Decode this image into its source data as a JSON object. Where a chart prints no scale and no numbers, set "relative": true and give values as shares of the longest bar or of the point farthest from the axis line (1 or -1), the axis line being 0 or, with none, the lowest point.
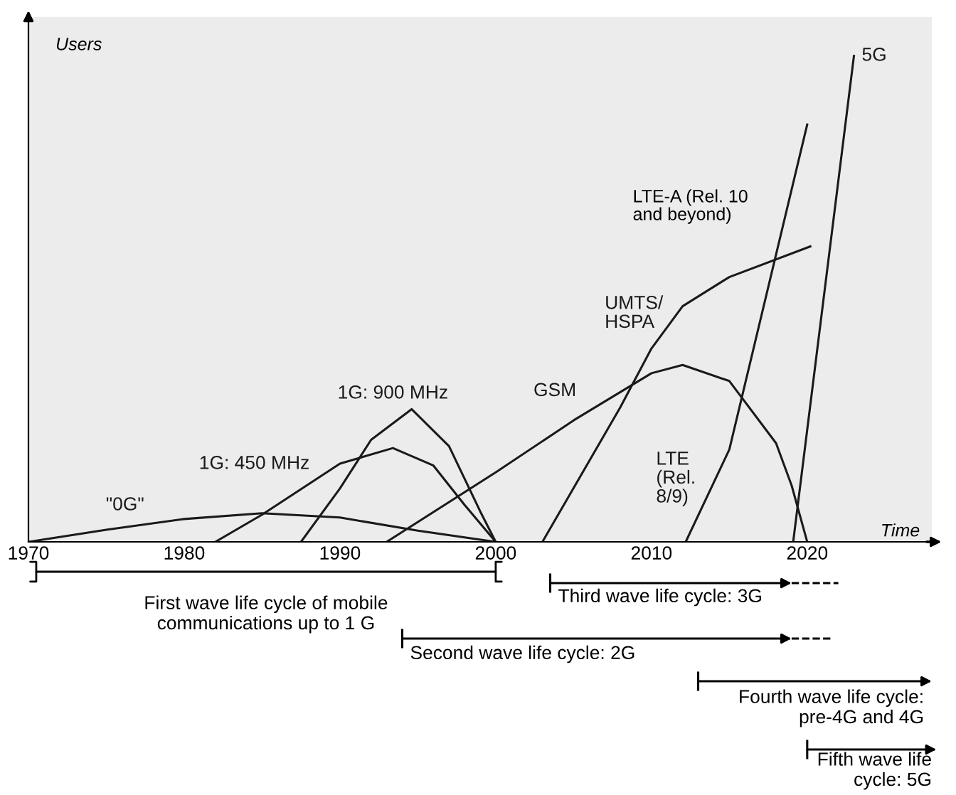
{
  "chart_data": {
    "type": "line",
    "relative": true,
    "xlabel": "Time",
    "ylabel": "Users",
    "xlim": [
      1970,
      2028
    ],
    "xticks": [
      1970,
      1980,
      1990,
      2000,
      2010,
      2020
    ],
    "grid": false,
    "marker": "none",
    "line_style": "solid",
    "series": [
      {
        "name": "\"0G\"",
        "color": "#1a1a1a",
        "x": [
          1970,
          1975,
          1980,
          1985,
          1990,
          1995,
          2000
        ],
        "values": [
          0,
          0.025,
          0.047,
          0.059,
          0.05,
          0.023,
          0
        ]
      },
      {
        "name": "1G: 450 MHz",
        "color": "#1a1a1a",
        "x": [
          1982,
          1985,
          1990,
          1993.4,
          1996,
          1998,
          2000
        ],
        "values": [
          0,
          0.056,
          0.161,
          0.193,
          0.157,
          0.076,
          0
        ]
      },
      {
        "name": "1G: 900 MHz",
        "color": "#1a1a1a",
        "x": [
          1987.5,
          1990,
          1992,
          1994.6,
          1997,
          1999,
          2000
        ],
        "values": [
          0,
          0.11,
          0.21,
          0.273,
          0.197,
          0.063,
          0
        ]
      },
      {
        "name": "GSM",
        "color": "#1a1a1a",
        "x": [
          1993,
          2000,
          2005,
          2010,
          2012,
          2015,
          2018,
          2019,
          2020
        ],
        "values": [
          0,
          0.143,
          0.25,
          0.347,
          0.364,
          0.331,
          0.203,
          0.116,
          0
        ]
      },
      {
        "name": "UMTS/\nHSPA",
        "color": "#1a1a1a",
        "x": [
          2003,
          2008,
          2010,
          2012,
          2015,
          2020.2
        ],
        "values": [
          0,
          0.277,
          0.398,
          0.485,
          0.545,
          0.608
        ]
      },
      {
        "name": "LTE\n(Rel.\n8/9)",
        "color": "#1a1a1a",
        "x": [
          2012.2,
          2015,
          2020
        ],
        "values": [
          0,
          0.19,
          0.859
        ]
      },
      {
        "name": "5G",
        "color": "#1a1a1a",
        "x": [
          2019.1,
          2023
        ],
        "values": [
          0,
          1.0
        ]
      }
    ],
    "annotations": [
      "LTE-A (Rel. 10\nand beyond)",
      "First wave life cycle of mobile\ncommunications up to 1 G",
      "Third wave life cycle: 3G",
      "Second wave life cycle: 2G",
      "Fourth wave life cycle:\npre-4G and 4G",
      "Fifth wave life\ncycle: 5G"
    ]
  }
}
